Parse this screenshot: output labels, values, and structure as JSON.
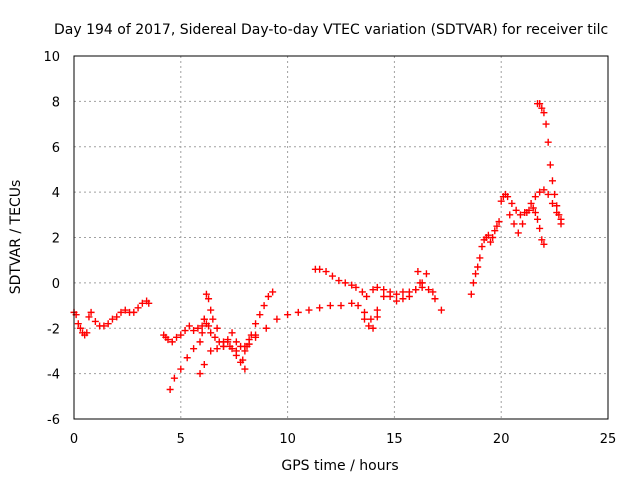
{
  "chart_data": {
    "type": "scatter",
    "title": "Day 194 of 2017, Sidereal Day-to-day VTEC variation (SDTVAR) for receiver tilc",
    "xlabel": "GPS time / hours",
    "ylabel": "SDTVAR / TECUs",
    "xlim": [
      0,
      25
    ],
    "ylim": [
      -6,
      10
    ],
    "xticks": [
      0,
      5,
      10,
      15,
      20,
      25
    ],
    "yticks": [
      -6,
      -4,
      -2,
      0,
      2,
      4,
      6,
      8,
      10
    ],
    "xtick_labels": [
      "0",
      "5",
      "10",
      "15",
      "20",
      "25"
    ],
    "ytick_labels": [
      "-6",
      "-4",
      "-2",
      "0",
      "2",
      "4",
      "6",
      "8",
      "10"
    ],
    "grid": true,
    "marker": "plus",
    "color": "#ff0000",
    "series": [
      {
        "x": [
          0.0,
          0.1,
          0.2,
          0.3,
          0.4,
          0.5,
          0.6,
          0.7,
          0.8,
          1.0,
          1.2,
          1.4,
          1.6,
          1.8,
          2.0,
          2.2,
          2.4,
          2.6,
          2.8,
          3.0,
          3.2,
          3.4,
          3.5,
          4.2,
          4.3,
          4.4,
          4.6,
          4.8,
          5.0,
          5.2,
          5.4,
          5.6,
          5.8,
          6.0,
          6.1,
          6.2,
          6.3,
          6.4,
          6.6,
          6.8,
          7.0,
          7.2,
          7.4,
          7.6,
          7.8,
          8.0,
          8.2,
          8.5,
          4.5,
          4.7,
          5.0,
          5.3,
          5.6,
          5.9,
          6.0,
          6.1,
          6.2,
          6.3,
          6.4,
          6.5,
          6.7,
          7.0,
          7.3,
          7.6,
          7.9,
          8.0,
          8.1,
          8.3,
          8.5,
          8.7,
          8.9,
          9.1,
          9.3,
          5.9,
          6.1,
          6.4,
          6.7,
          7.0,
          7.2,
          7.4,
          7.6,
          7.8,
          8.0,
          8.2,
          8.5,
          9.0,
          9.5,
          10.0,
          10.5,
          11.0,
          11.5,
          12.0,
          12.5,
          13.0,
          13.3,
          13.6,
          13.9,
          14.2,
          14.5,
          14.8,
          15.1,
          15.4,
          15.7,
          16.0,
          16.3,
          16.6,
          16.9,
          17.2,
          11.3,
          11.5,
          11.8,
          12.1,
          12.4,
          12.7,
          13.0,
          13.2,
          13.5,
          13.7,
          14.0,
          14.2,
          14.5,
          14.8,
          15.1,
          15.4,
          15.7,
          16.0,
          16.1,
          16.2,
          16.3,
          16.5,
          16.8,
          13.6,
          13.8,
          14.0,
          14.2,
          18.6,
          18.7,
          18.8,
          18.9,
          19.0,
          19.1,
          19.2,
          19.3,
          19.4,
          19.5,
          19.6,
          19.7,
          19.8,
          19.9,
          20.0,
          20.1,
          20.2,
          20.3,
          20.5,
          20.7,
          20.9,
          21.1,
          21.3,
          21.5,
          21.6,
          21.7,
          21.8,
          21.9,
          22.0,
          20.4,
          20.6,
          20.8,
          21.0,
          21.2,
          21.4,
          21.6,
          21.8,
          22.0,
          22.2,
          22.4,
          22.6,
          22.8,
          21.7,
          21.8,
          21.9,
          22.0,
          22.1,
          22.2,
          22.3,
          22.4,
          22.5,
          22.6,
          22.7,
          22.8
        ],
        "y": [
          -1.3,
          -1.4,
          -1.8,
          -2.0,
          -2.2,
          -2.3,
          -2.2,
          -1.5,
          -1.3,
          -1.7,
          -1.9,
          -1.9,
          -1.8,
          -1.6,
          -1.5,
          -1.3,
          -1.2,
          -1.3,
          -1.3,
          -1.1,
          -0.9,
          -0.8,
          -0.9,
          -2.3,
          -2.4,
          -2.5,
          -2.6,
          -2.4,
          -2.3,
          -2.1,
          -1.9,
          -2.1,
          -2.0,
          -1.9,
          -1.6,
          -1.8,
          -1.9,
          -2.2,
          -2.4,
          -2.6,
          -2.8,
          -2.5,
          -2.2,
          -2.6,
          -2.8,
          -3.0,
          -2.7,
          -2.4,
          -4.7,
          -4.2,
          -3.8,
          -3.3,
          -2.9,
          -2.6,
          -2.2,
          -1.6,
          -0.5,
          -0.7,
          -1.2,
          -1.6,
          -2.0,
          -2.6,
          -2.8,
          -3.0,
          -3.4,
          -3.8,
          -2.8,
          -2.3,
          -1.8,
          -1.4,
          -1.0,
          -0.6,
          -0.4,
          -4.0,
          -3.6,
          -3.0,
          -2.9,
          -2.8,
          -2.6,
          -2.9,
          -3.2,
          -3.5,
          -2.8,
          -2.5,
          -2.3,
          -2.0,
          -1.6,
          -1.4,
          -1.3,
          -1.2,
          -1.1,
          -1.0,
          -1.0,
          -0.9,
          -1.0,
          -1.3,
          -1.6,
          -1.2,
          -0.6,
          -0.6,
          -0.8,
          -0.7,
          -0.6,
          -0.3,
          0.0,
          -0.3,
          -0.7,
          -1.2,
          0.6,
          0.6,
          0.5,
          0.3,
          0.1,
          0.0,
          -0.1,
          -0.2,
          -0.4,
          -0.6,
          -0.3,
          -0.2,
          -0.3,
          -0.4,
          -0.5,
          -0.4,
          -0.4,
          -0.3,
          0.5,
          0.0,
          -0.2,
          0.4,
          -0.4,
          -1.6,
          -1.9,
          -2.0,
          -1.5,
          -0.5,
          0.0,
          0.4,
          0.7,
          1.1,
          1.6,
          1.9,
          2.0,
          2.1,
          1.8,
          2.0,
          2.3,
          2.5,
          2.7,
          3.6,
          3.8,
          3.9,
          3.8,
          3.5,
          3.2,
          3.0,
          3.1,
          3.2,
          3.3,
          3.1,
          2.8,
          2.4,
          1.9,
          1.7,
          3.0,
          2.6,
          2.2,
          2.6,
          3.1,
          3.5,
          3.8,
          4.0,
          4.1,
          3.9,
          3.5,
          3.1,
          2.8,
          7.9,
          7.9,
          7.7,
          7.5,
          7.0,
          6.2,
          5.2,
          4.5,
          3.9,
          3.4,
          3.0,
          2.6
        ]
      }
    ]
  }
}
